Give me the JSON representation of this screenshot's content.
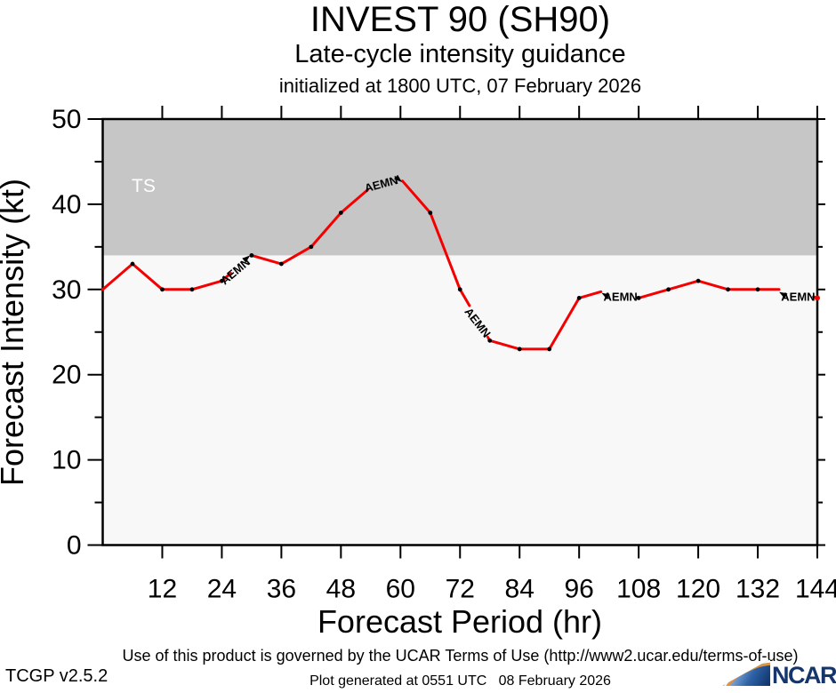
{
  "header": {
    "title": "INVEST 90 (SH90)",
    "subtitle": "Late-cycle intensity guidance",
    "init_line": "initialized at 1800 UTC, 07 February 2026"
  },
  "chart_data": {
    "type": "line",
    "title": "INVEST 90 (SH90)",
    "xlabel": "Forecast Period (hr)",
    "ylabel": "Forecast Intensity (kt)",
    "xlim": [
      0,
      144
    ],
    "ylim": [
      0,
      50
    ],
    "x_ticks": [
      12,
      24,
      36,
      48,
      60,
      72,
      84,
      96,
      108,
      120,
      132,
      144
    ],
    "y_ticks_major": [
      0,
      10,
      20,
      30,
      40,
      50
    ],
    "y_ticks_minor": [
      5,
      15,
      25,
      35,
      45
    ],
    "grid": false,
    "plot_bg": "#f8f8f8",
    "band": {
      "label": "TS",
      "from": 34,
      "to": 50,
      "color": "#c6c6c6",
      "label_color": "#ffffff"
    },
    "series": [
      {
        "name": "AEMN",
        "color": "#f40000",
        "x": [
          0,
          6,
          12,
          18,
          24,
          30,
          36,
          42,
          48,
          54,
          60,
          66,
          72,
          78,
          84,
          90,
          96,
          102,
          108,
          114,
          120,
          126,
          132,
          138,
          144
        ],
        "values": [
          30,
          33,
          30,
          30,
          31,
          34,
          33,
          35,
          39,
          42,
          43,
          39,
          30,
          24,
          23,
          23,
          29,
          30,
          29,
          30,
          31,
          30,
          30,
          30,
          29
        ]
      }
    ],
    "line_gaps_hours": [
      [
        25.8,
        29.9
      ],
      [
        53.4,
        60.4
      ],
      [
        73.9,
        77.6
      ],
      [
        100.4,
        107.6
      ],
      [
        136.3,
        143.2
      ]
    ],
    "hidden_marker_hours": [
      0,
      54,
      60,
      102,
      138
    ],
    "marker_color": "#000000",
    "end_marker_color": "#f40000",
    "annotations": [
      {
        "text": "AEMN",
        "t": 24.6,
        "v": 30.5,
        "angle": -40,
        "arrow": {
          "t": 29.7,
          "v": 34.0,
          "angle": -40
        }
      },
      {
        "text": "AEMN",
        "t": 53.0,
        "v": 41.4,
        "angle": -15,
        "arrow": {
          "t": 60.3,
          "v": 42.6,
          "angle": 40
        }
      },
      {
        "text": "AEMN",
        "t": 72.8,
        "v": 27.4,
        "angle": 52,
        "arrow": null
      },
      {
        "text": "AEMN",
        "t": 100.9,
        "v": 28.7,
        "angle": 0,
        "arrow": {
          "t": 100.5,
          "v": 29.6,
          "angle": -150
        }
      },
      {
        "text": "AEMN",
        "t": 136.7,
        "v": 28.7,
        "angle": 0,
        "arrow": {
          "t": 136.3,
          "v": 29.7,
          "angle": -150
        }
      }
    ]
  },
  "footer": {
    "terms": "Use of this product is governed by the UCAR Terms of Use (http://www2.ucar.edu/terms-of-use)",
    "version": "TCGP v2.5.2",
    "generated": "Plot generated at 0551 UTC   08 February 2026"
  },
  "logo": {
    "text": "NCAR",
    "navy": "#16356b",
    "orange": "#e0913c"
  }
}
